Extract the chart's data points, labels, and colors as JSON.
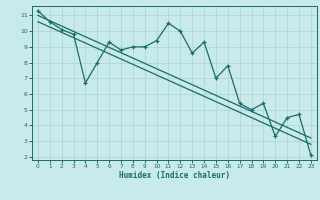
{
  "title": "",
  "xlabel": "Humidex (Indice chaleur)",
  "bg_color": "#c8eaea",
  "line_color": "#1a6b6b",
  "grid_color": "#b0d8d8",
  "x_data": [
    0,
    1,
    2,
    3,
    4,
    5,
    6,
    7,
    8,
    9,
    10,
    11,
    12,
    13,
    14,
    15,
    16,
    17,
    18,
    19,
    20,
    21,
    22,
    23
  ],
  "y_data": [
    11.3,
    10.6,
    10.1,
    9.8,
    6.7,
    8.0,
    9.3,
    8.8,
    9.0,
    9.0,
    9.4,
    10.5,
    10.0,
    8.6,
    9.3,
    7.0,
    7.8,
    5.4,
    5.0,
    5.4,
    3.3,
    4.5,
    4.7,
    2.1
  ],
  "trend1_x": [
    0,
    23
  ],
  "trend1_y": [
    11.0,
    3.2
  ],
  "trend2_x": [
    0,
    23
  ],
  "trend2_y": [
    10.6,
    2.8
  ],
  "ylim": [
    1.8,
    11.6
  ],
  "xlim": [
    -0.5,
    23.5
  ],
  "yticks": [
    2,
    3,
    4,
    5,
    6,
    7,
    8,
    9,
    10,
    11
  ],
  "xticks": [
    0,
    1,
    2,
    3,
    4,
    5,
    6,
    7,
    8,
    9,
    10,
    11,
    12,
    13,
    14,
    15,
    16,
    17,
    18,
    19,
    20,
    21,
    22,
    23
  ]
}
